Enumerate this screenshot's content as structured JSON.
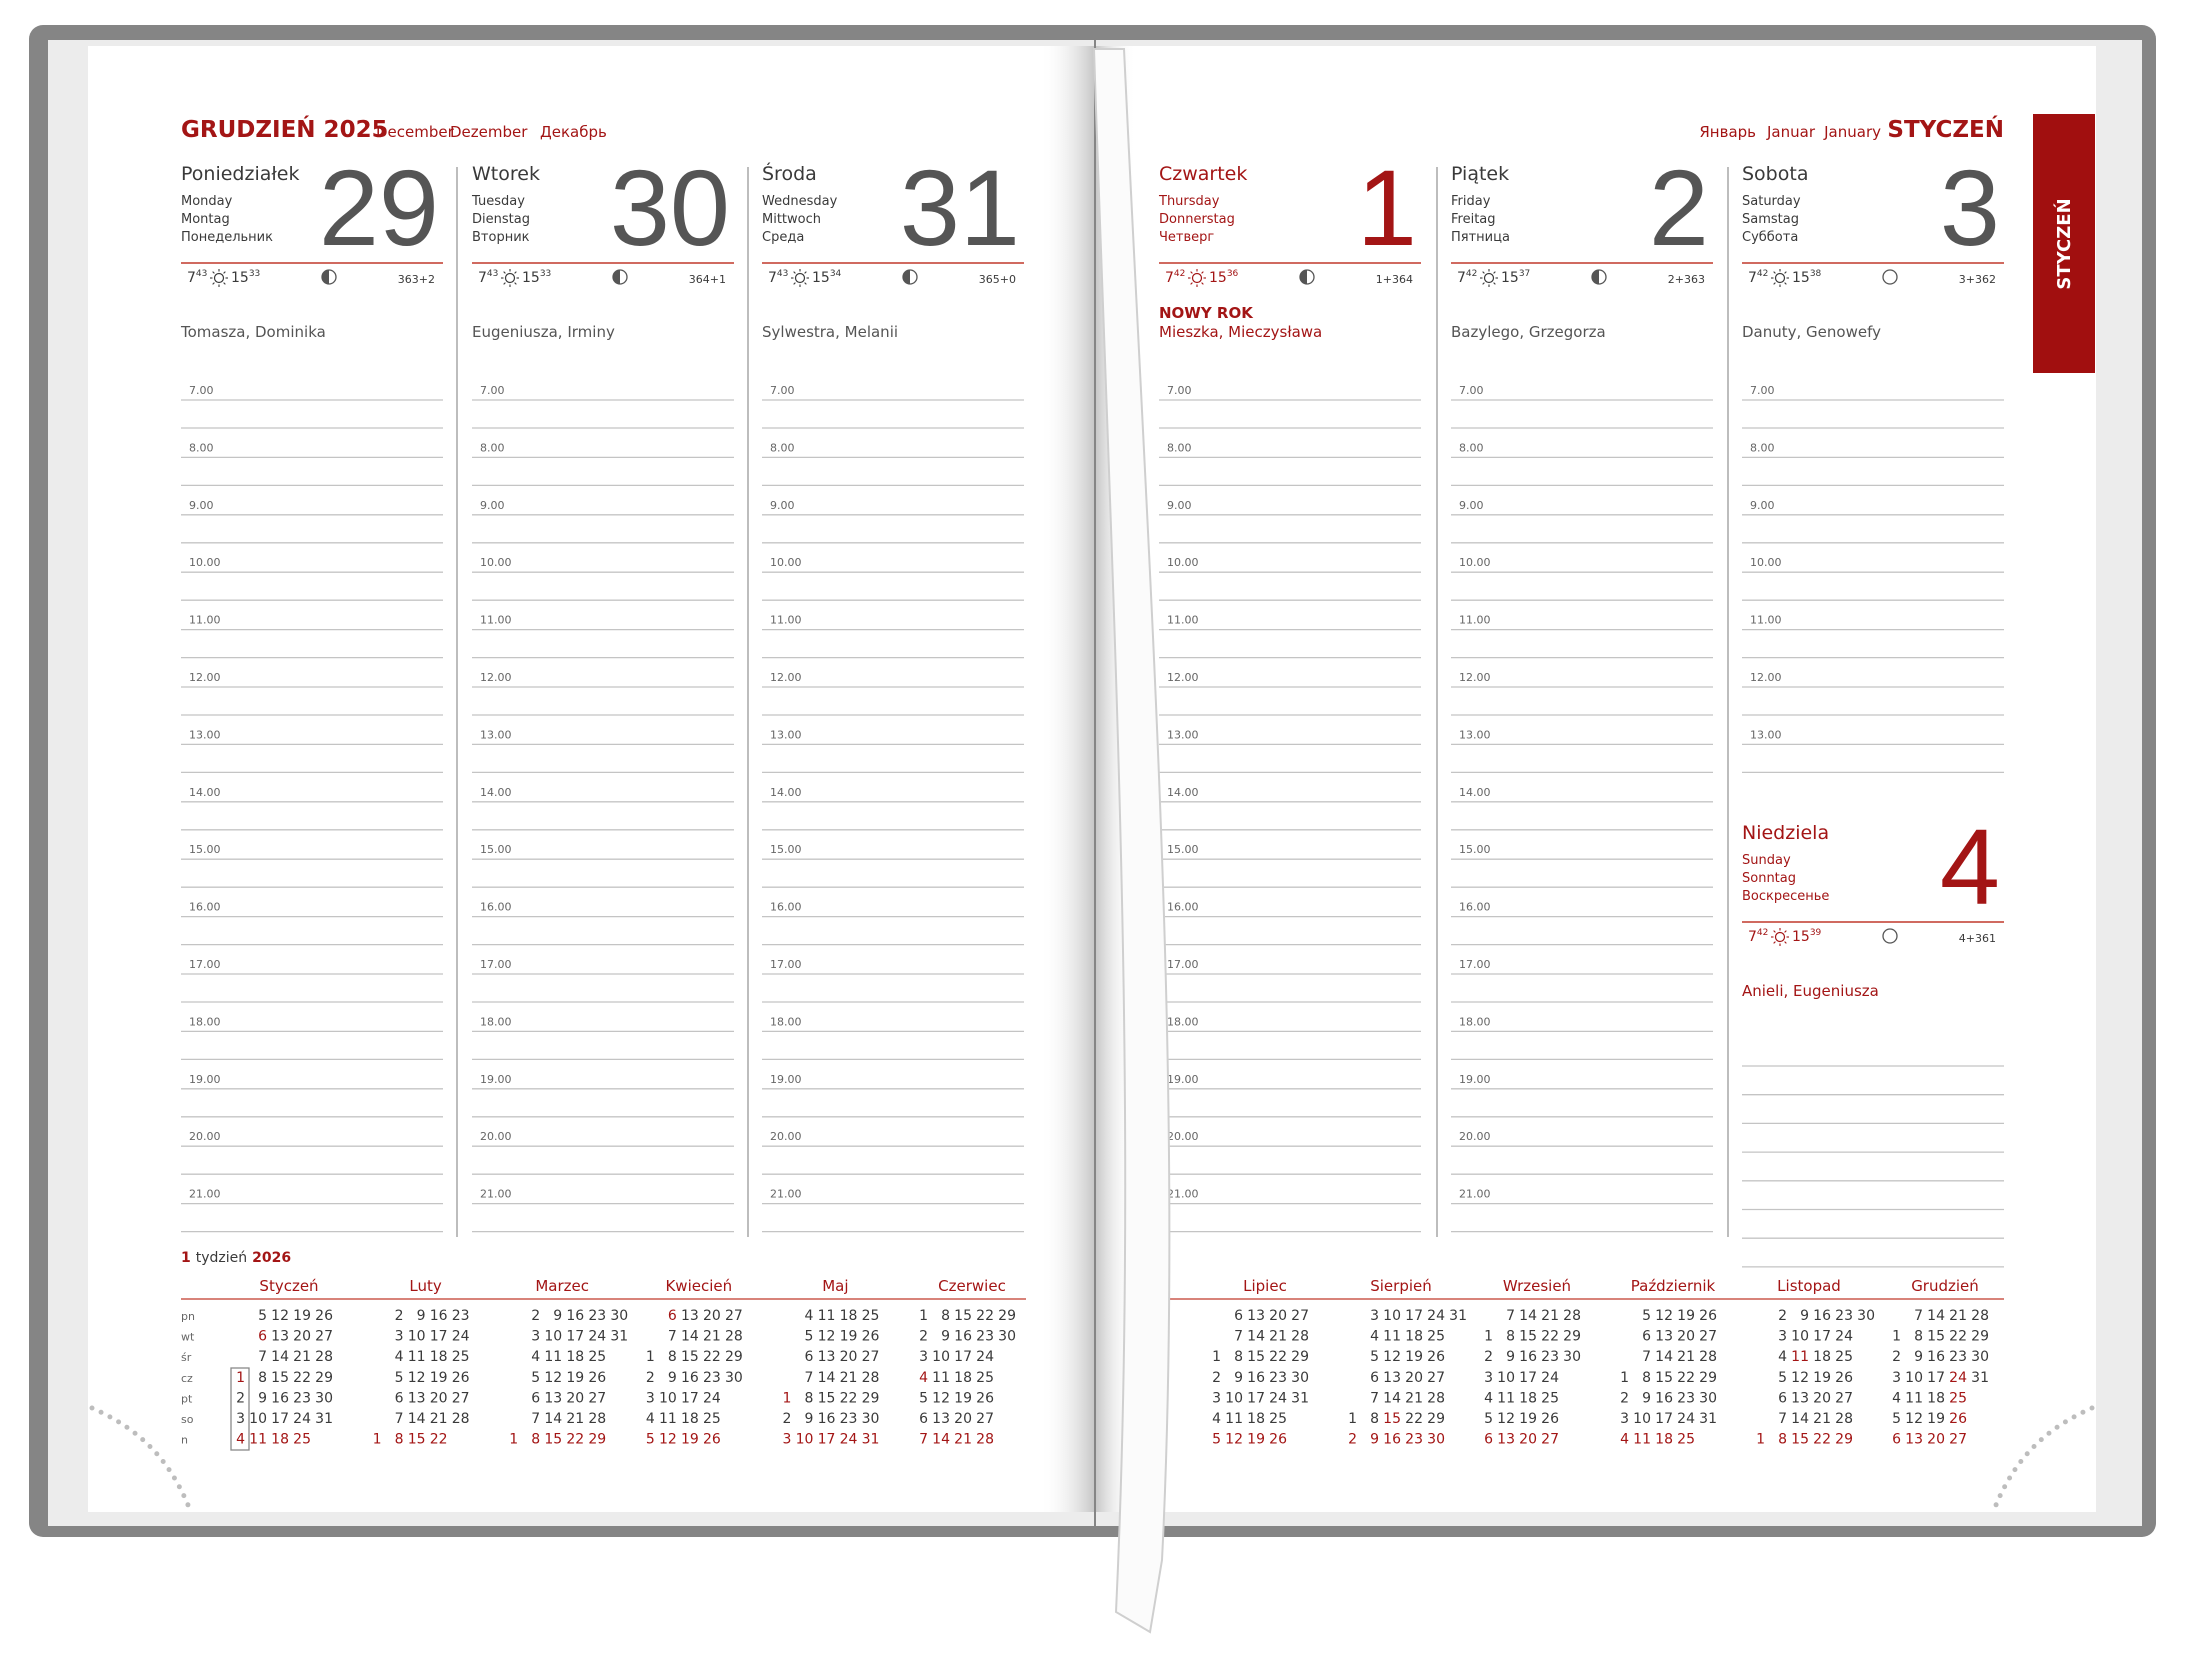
{
  "left_page": {
    "month": "GRUDZIEŃ 2025",
    "month_translations": [
      "December",
      "Dezember",
      "Декабрь"
    ],
    "days": [
      {
        "weekday": "Poniedziałek",
        "translations": [
          "Monday",
          "Montag",
          "Понедельник"
        ],
        "date": "29",
        "sunrise": [
          "7",
          "43"
        ],
        "sunset": [
          "15",
          "33"
        ],
        "moon": "half",
        "day_count": "363+2",
        "names": "Tomasza, Dominika",
        "red": false,
        "hours": [
          "7.00",
          "8.00",
          "9.00",
          "10.00",
          "11.00",
          "12.00",
          "13.00",
          "14.00",
          "15.00",
          "16.00",
          "17.00",
          "18.00",
          "19.00",
          "20.00",
          "21.00"
        ]
      },
      {
        "weekday": "Wtorek",
        "translations": [
          "Tuesday",
          "Dienstag",
          "Вторник"
        ],
        "date": "30",
        "sunrise": [
          "7",
          "43"
        ],
        "sunset": [
          "15",
          "33"
        ],
        "moon": "half",
        "day_count": "364+1",
        "names": "Eugeniusza, Irminy",
        "red": false,
        "hours": [
          "7.00",
          "8.00",
          "9.00",
          "10.00",
          "11.00",
          "12.00",
          "13.00",
          "14.00",
          "15.00",
          "16.00",
          "17.00",
          "18.00",
          "19.00",
          "20.00",
          "21.00"
        ]
      },
      {
        "weekday": "Środa",
        "translations": [
          "Wednesday",
          "Mittwoch",
          "Среда"
        ],
        "date": "31",
        "sunrise": [
          "7",
          "43"
        ],
        "sunset": [
          "15",
          "34"
        ],
        "moon": "half",
        "day_count": "365+0",
        "names": "Sylwestra, Melanii",
        "red": false,
        "hours": [
          "7.00",
          "8.00",
          "9.00",
          "10.00",
          "11.00",
          "12.00",
          "13.00",
          "14.00",
          "15.00",
          "16.00",
          "17.00",
          "18.00",
          "19.00",
          "20.00",
          "21.00"
        ]
      }
    ],
    "week_info": {
      "week": "1",
      "label": "tydzień",
      "year": "2026"
    },
    "weekday_abbr": [
      "pn",
      "wt",
      "śr",
      "cz",
      "pt",
      "so",
      "n"
    ],
    "months": [
      {
        "name": "Styczeń",
        "holidays": [
          1,
          6
        ],
        "rows": [
          [
            null,
            5,
            12,
            19,
            26
          ],
          [
            null,
            6,
            13,
            20,
            27
          ],
          [
            null,
            7,
            14,
            21,
            28
          ],
          [
            1,
            8,
            15,
            22,
            29
          ],
          [
            2,
            9,
            16,
            23,
            30
          ],
          [
            3,
            10,
            17,
            24,
            31
          ],
          [
            4,
            11,
            18,
            25
          ]
        ]
      },
      {
        "name": "Luty",
        "holidays": [],
        "rows": [
          [
            null,
            2,
            9,
            16,
            23
          ],
          [
            null,
            3,
            10,
            17,
            24
          ],
          [
            null,
            4,
            11,
            18,
            25
          ],
          [
            null,
            5,
            12,
            19,
            26
          ],
          [
            null,
            6,
            13,
            20,
            27
          ],
          [
            null,
            7,
            14,
            21,
            28
          ],
          [
            1,
            8,
            15,
            22
          ]
        ]
      },
      {
        "name": "Marzec",
        "holidays": [],
        "rows": [
          [
            null,
            2,
            9,
            16,
            23,
            30
          ],
          [
            null,
            3,
            10,
            17,
            24,
            31
          ],
          [
            null,
            4,
            11,
            18,
            25
          ],
          [
            null,
            5,
            12,
            19,
            26
          ],
          [
            null,
            6,
            13,
            20,
            27
          ],
          [
            null,
            7,
            14,
            21,
            28
          ],
          [
            1,
            8,
            15,
            22,
            29
          ]
        ]
      },
      {
        "name": "Kwiecień",
        "holidays": [
          6
        ],
        "rows": [
          [
            null,
            6,
            13,
            20,
            27
          ],
          [
            null,
            7,
            14,
            21,
            28
          ],
          [
            1,
            8,
            15,
            22,
            29
          ],
          [
            2,
            9,
            16,
            23,
            30
          ],
          [
            3,
            10,
            17,
            24
          ],
          [
            4,
            11,
            18,
            25
          ],
          [
            5,
            12,
            19,
            26
          ]
        ]
      },
      {
        "name": "Maj",
        "holidays": [
          1,
          3
        ],
        "rows": [
          [
            null,
            4,
            11,
            18,
            25
          ],
          [
            null,
            5,
            12,
            19,
            26
          ],
          [
            null,
            6,
            13,
            20,
            27
          ],
          [
            null,
            7,
            14,
            21,
            28
          ],
          [
            1,
            8,
            15,
            22,
            29
          ],
          [
            2,
            9,
            16,
            23,
            30
          ],
          [
            3,
            10,
            17,
            24,
            31
          ]
        ]
      },
      {
        "name": "Czerwiec",
        "holidays": [
          4
        ],
        "rows": [
          [
            1,
            8,
            15,
            22,
            29
          ],
          [
            2,
            9,
            16,
            23,
            30
          ],
          [
            3,
            10,
            17,
            24
          ],
          [
            4,
            11,
            18,
            25
          ],
          [
            5,
            12,
            19,
            26
          ],
          [
            6,
            13,
            20,
            27
          ],
          [
            7,
            14,
            21,
            28
          ]
        ]
      }
    ]
  },
  "right_page": {
    "month": "STYCZEŃ",
    "month_translations": [
      "Январь",
      "Januar",
      "January"
    ],
    "tab": "STYCZEŃ",
    "days": [
      {
        "weekday": "Czwartek",
        "translations": [
          "Thursday",
          "Donnerstag",
          "Четверг"
        ],
        "date": "1",
        "sunrise": [
          "7",
          "42"
        ],
        "sunset": [
          "15",
          "36"
        ],
        "moon": "half",
        "day_count": "1+364",
        "holiday": "NOWY ROK",
        "names": "Mieszka, Mieczysława",
        "red": true,
        "hours": [
          "7.00",
          "8.00",
          "9.00",
          "10.00",
          "11.00",
          "12.00",
          "13.00",
          "14.00",
          "15.00",
          "16.00",
          "17.00",
          "18.00",
          "19.00",
          "20.00",
          "21.00"
        ]
      },
      {
        "weekday": "Piątek",
        "translations": [
          "Friday",
          "Freitag",
          "Пятница"
        ],
        "date": "2",
        "sunrise": [
          "7",
          "42"
        ],
        "sunset": [
          "15",
          "37"
        ],
        "moon": "half",
        "day_count": "2+363",
        "names": "Bazylego, Grzegorza",
        "red": false,
        "hours": [
          "7.00",
          "8.00",
          "9.00",
          "10.00",
          "11.00",
          "12.00",
          "13.00",
          "14.00",
          "15.00",
          "16.00",
          "17.00",
          "18.00",
          "19.00",
          "20.00",
          "21.00"
        ]
      },
      {
        "weekday": "Sobota",
        "translations": [
          "Saturday",
          "Samstag",
          "Суббота"
        ],
        "date": "3",
        "sunrise": [
          "7",
          "42"
        ],
        "sunset": [
          "15",
          "38"
        ],
        "moon": "full",
        "day_count": "3+362",
        "names": "Danuty, Genowefy",
        "red": false,
        "hours": [
          "7.00",
          "8.00",
          "9.00",
          "10.00",
          "11.00",
          "12.00",
          "13.00"
        ]
      }
    ],
    "sunday": {
      "weekday": "Niedziela",
      "translations": [
        "Sunday",
        "Sonntag",
        "Воскресенье"
      ],
      "date": "4",
      "sunrise": [
        "7",
        "42"
      ],
      "sunset": [
        "15",
        "39"
      ],
      "moon": "full",
      "day_count": "4+361",
      "names": "Anieli, Eugeniusza",
      "red": true,
      "hours": []
    },
    "months": [
      {
        "name": "Lipiec",
        "holidays": [],
        "rows": [
          [
            null,
            6,
            13,
            20,
            27
          ],
          [
            null,
            7,
            14,
            21,
            28
          ],
          [
            1,
            8,
            15,
            22,
            29
          ],
          [
            2,
            9,
            16,
            23,
            30
          ],
          [
            3,
            10,
            17,
            24,
            31
          ],
          [
            4,
            11,
            18,
            25
          ],
          [
            5,
            12,
            19,
            26
          ]
        ]
      },
      {
        "name": "Sierpień",
        "holidays": [
          15
        ],
        "rows": [
          [
            null,
            3,
            10,
            17,
            24,
            31
          ],
          [
            null,
            4,
            11,
            18,
            25
          ],
          [
            null,
            5,
            12,
            19,
            26
          ],
          [
            null,
            6,
            13,
            20,
            27
          ],
          [
            null,
            7,
            14,
            21,
            28
          ],
          [
            1,
            8,
            15,
            22,
            29
          ],
          [
            2,
            9,
            16,
            23,
            30
          ]
        ]
      },
      {
        "name": "Wrzesień",
        "holidays": [],
        "rows": [
          [
            null,
            7,
            14,
            21,
            28
          ],
          [
            1,
            8,
            15,
            22,
            29
          ],
          [
            2,
            9,
            16,
            23,
            30
          ],
          [
            3,
            10,
            17,
            24
          ],
          [
            4,
            11,
            18,
            25
          ],
          [
            5,
            12,
            19,
            26
          ],
          [
            6,
            13,
            20,
            27
          ]
        ]
      },
      {
        "name": "Październik",
        "holidays": [],
        "rows": [
          [
            null,
            5,
            12,
            19,
            26
          ],
          [
            null,
            6,
            13,
            20,
            27
          ],
          [
            null,
            7,
            14,
            21,
            28
          ],
          [
            1,
            8,
            15,
            22,
            29
          ],
          [
            2,
            9,
            16,
            23,
            30
          ],
          [
            3,
            10,
            17,
            24,
            31
          ],
          [
            4,
            11,
            18,
            25
          ]
        ]
      },
      {
        "name": "Listopad",
        "holidays": [
          11
        ],
        "rows": [
          [
            null,
            2,
            9,
            16,
            23,
            30
          ],
          [
            null,
            3,
            10,
            17,
            24
          ],
          [
            null,
            4,
            11,
            18,
            25
          ],
          [
            null,
            5,
            12,
            19,
            26
          ],
          [
            null,
            6,
            13,
            20,
            27
          ],
          [
            null,
            7,
            14,
            21,
            28
          ],
          [
            1,
            8,
            15,
            22,
            29
          ]
        ]
      },
      {
        "name": "Grudzień",
        "holidays": [
          24,
          25,
          26
        ],
        "rows": [
          [
            null,
            7,
            14,
            21,
            28
          ],
          [
            1,
            8,
            15,
            22,
            29
          ],
          [
            2,
            9,
            16,
            23,
            30
          ],
          [
            3,
            10,
            17,
            24,
            31
          ],
          [
            4,
            11,
            18,
            25
          ],
          [
            5,
            12,
            19,
            26
          ],
          [
            6,
            13,
            20,
            27
          ]
        ]
      }
    ]
  }
}
